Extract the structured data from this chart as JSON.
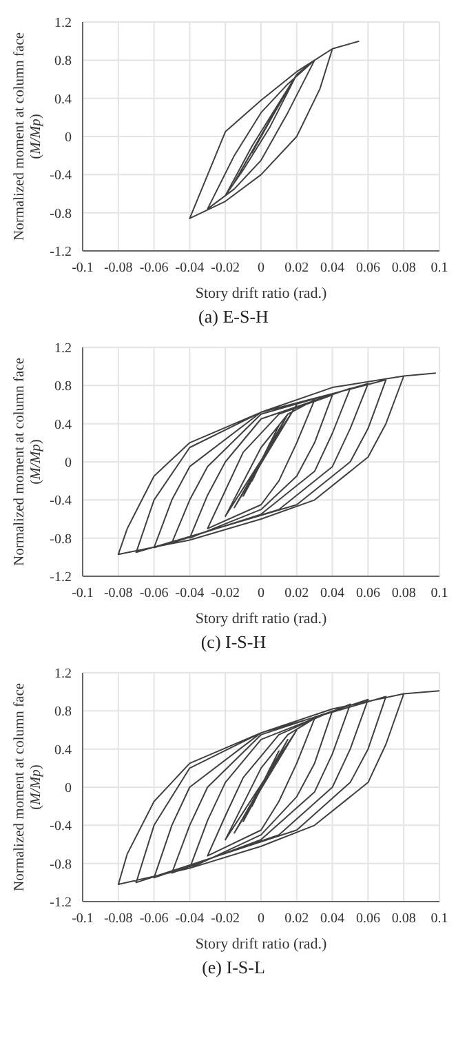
{
  "chart_data": [
    {
      "type": "line",
      "title": "(a) E-S-H",
      "xlabel": "Story drift ratio (rad.)",
      "ylabel": "Normalized moment at column face (M/Mp)",
      "xlim": [
        -0.1,
        0.1
      ],
      "xticks": [
        -0.1,
        -0.08,
        -0.06,
        -0.04,
        -0.02,
        0,
        0.02,
        0.04,
        0.06,
        0.08,
        0.1
      ],
      "ylim": [
        -1.2,
        1.2
      ],
      "yticks": [
        -1.2,
        -0.8,
        -0.4,
        0,
        0.4,
        0.8,
        1.2
      ],
      "grid": true,
      "series": [
        {
          "color": "#404040",
          "x": [
            0,
            0.005,
            -0.005,
            0.01,
            -0.01,
            0.015,
            -0.015,
            0.02,
            0.005,
            -0.01,
            -0.02,
            -0.005,
            0.01,
            0.02,
            0.03,
            0.015,
            0,
            -0.015,
            -0.03,
            -0.015,
            0,
            0.015,
            0.03,
            0.04,
            0.033,
            0.02,
            0,
            -0.02,
            -0.04,
            -0.02,
            0,
            0.02,
            0.04,
            0.055
          ],
          "values": [
            0,
            0.17,
            -0.17,
            0.33,
            -0.32,
            0.5,
            -0.48,
            0.65,
            0.1,
            -0.35,
            -0.62,
            -0.1,
            0.35,
            0.65,
            0.8,
            0.25,
            -0.25,
            -0.55,
            -0.76,
            -0.2,
            0.25,
            0.55,
            0.8,
            0.92,
            0.5,
            0,
            -0.4,
            -0.68,
            -0.86,
            0.05,
            0.38,
            0.68,
            0.92,
            1.0
          ]
        }
      ]
    },
    {
      "type": "line",
      "title": "(c) I-S-H",
      "xlabel": "Story drift ratio (rad.)",
      "ylabel": "Normalized moment at column face (M/Mp)",
      "xlim": [
        -0.1,
        0.1
      ],
      "xticks": [
        -0.1,
        -0.08,
        -0.06,
        -0.04,
        -0.02,
        0,
        0.02,
        0.04,
        0.06,
        0.08,
        0.1
      ],
      "ylim": [
        -1.2,
        1.2
      ],
      "yticks": [
        -1.2,
        -0.8,
        -0.4,
        0,
        0.4,
        0.8,
        1.2
      ],
      "grid": true,
      "series": [
        {
          "color": "#404040",
          "x": [
            0,
            0.005,
            -0.005,
            0.01,
            -0.01,
            0.015,
            -0.015,
            0.02,
            -0.02,
            0,
            0.015,
            0.03,
            0.02,
            0.01,
            0,
            -0.03,
            -0.02,
            -0.01,
            0.01,
            0.04,
            0.03,
            0.02,
            0,
            -0.04,
            -0.03,
            -0.02,
            0,
            0.05,
            0.04,
            0.03,
            0,
            -0.05,
            -0.04,
            -0.03,
            0,
            0.06,
            0.05,
            0.04,
            0.01,
            -0.06,
            -0.05,
            -0.04,
            0,
            0.07,
            0.06,
            0.05,
            0.02,
            -0.07,
            -0.06,
            -0.04,
            0,
            0.04,
            0.08,
            0.07,
            0.06,
            0.03,
            0,
            -0.04,
            -0.08,
            -0.075,
            -0.06,
            -0.04,
            0,
            0.04,
            0.08,
            0.098
          ],
          "values": [
            0,
            0.2,
            -0.2,
            0.38,
            -0.36,
            0.5,
            -0.48,
            0.6,
            -0.57,
            0.15,
            0.5,
            0.65,
            0.2,
            -0.2,
            -0.45,
            -0.7,
            -0.3,
            0.1,
            0.5,
            0.7,
            0.2,
            -0.15,
            -0.5,
            -0.8,
            -0.35,
            0,
            0.45,
            0.77,
            0.3,
            -0.1,
            -0.55,
            -0.85,
            -0.4,
            -0.05,
            0.5,
            0.82,
            0.35,
            -0.05,
            -0.5,
            -0.9,
            -0.4,
            -0.05,
            0.52,
            0.86,
            0.35,
            0,
            -0.45,
            -0.95,
            -0.4,
            0.15,
            0.52,
            0.78,
            0.9,
            0.4,
            0.05,
            -0.4,
            -0.6,
            -0.82,
            -0.97,
            -0.7,
            -0.15,
            0.2,
            0.52,
            0.78,
            0.9,
            0.93
          ]
        }
      ]
    },
    {
      "type": "line",
      "title": "(e) I-S-L",
      "xlabel": "Story drift ratio (rad.)",
      "ylabel": "Normalized moment at column face (M/Mp)",
      "xlim": [
        -0.1,
        0.1
      ],
      "xticks": [
        -0.1,
        -0.08,
        -0.06,
        -0.04,
        -0.02,
        0,
        0.02,
        0.04,
        0.06,
        0.08,
        0.1
      ],
      "ylim": [
        -1.2,
        1.2
      ],
      "yticks": [
        -1.2,
        -0.8,
        -0.4,
        0,
        0.4,
        0.8,
        1.2
      ],
      "grid": true,
      "series": [
        {
          "color": "#404040",
          "x": [
            0,
            0.005,
            -0.005,
            0.01,
            -0.01,
            0.015,
            -0.015,
            0.02,
            -0.02,
            0,
            0.015,
            0.03,
            0.02,
            0.01,
            0,
            -0.03,
            -0.02,
            -0.01,
            0.01,
            0.04,
            0.03,
            0.02,
            0,
            -0.04,
            -0.03,
            -0.02,
            0,
            0.05,
            0.04,
            0.03,
            0,
            -0.05,
            -0.04,
            -0.03,
            0,
            0.06,
            0.05,
            0.04,
            0.01,
            -0.06,
            -0.05,
            -0.04,
            0,
            0.07,
            0.06,
            0.05,
            0.02,
            -0.07,
            -0.06,
            -0.04,
            0,
            0.04,
            0.08,
            0.07,
            0.06,
            0.03,
            0,
            -0.04,
            -0.08,
            -0.075,
            -0.06,
            -0.04,
            0,
            0.04,
            0.08,
            0.1
          ],
          "values": [
            0,
            0.2,
            -0.2,
            0.38,
            -0.36,
            0.5,
            -0.48,
            0.6,
            -0.55,
            0.2,
            0.55,
            0.72,
            0.25,
            -0.15,
            -0.45,
            -0.72,
            -0.3,
            0.1,
            0.55,
            0.8,
            0.25,
            -0.1,
            -0.5,
            -0.85,
            -0.35,
            0.05,
            0.5,
            0.87,
            0.35,
            -0.05,
            -0.55,
            -0.9,
            -0.4,
            0,
            0.55,
            0.92,
            0.4,
            0,
            -0.5,
            -0.95,
            -0.4,
            0,
            0.57,
            0.95,
            0.4,
            0.05,
            -0.45,
            -1.0,
            -0.4,
            0.2,
            0.57,
            0.82,
            0.98,
            0.45,
            0.05,
            -0.4,
            -0.62,
            -0.85,
            -1.02,
            -0.7,
            -0.15,
            0.25,
            0.57,
            0.82,
            0.98,
            1.01
          ]
        }
      ]
    }
  ]
}
